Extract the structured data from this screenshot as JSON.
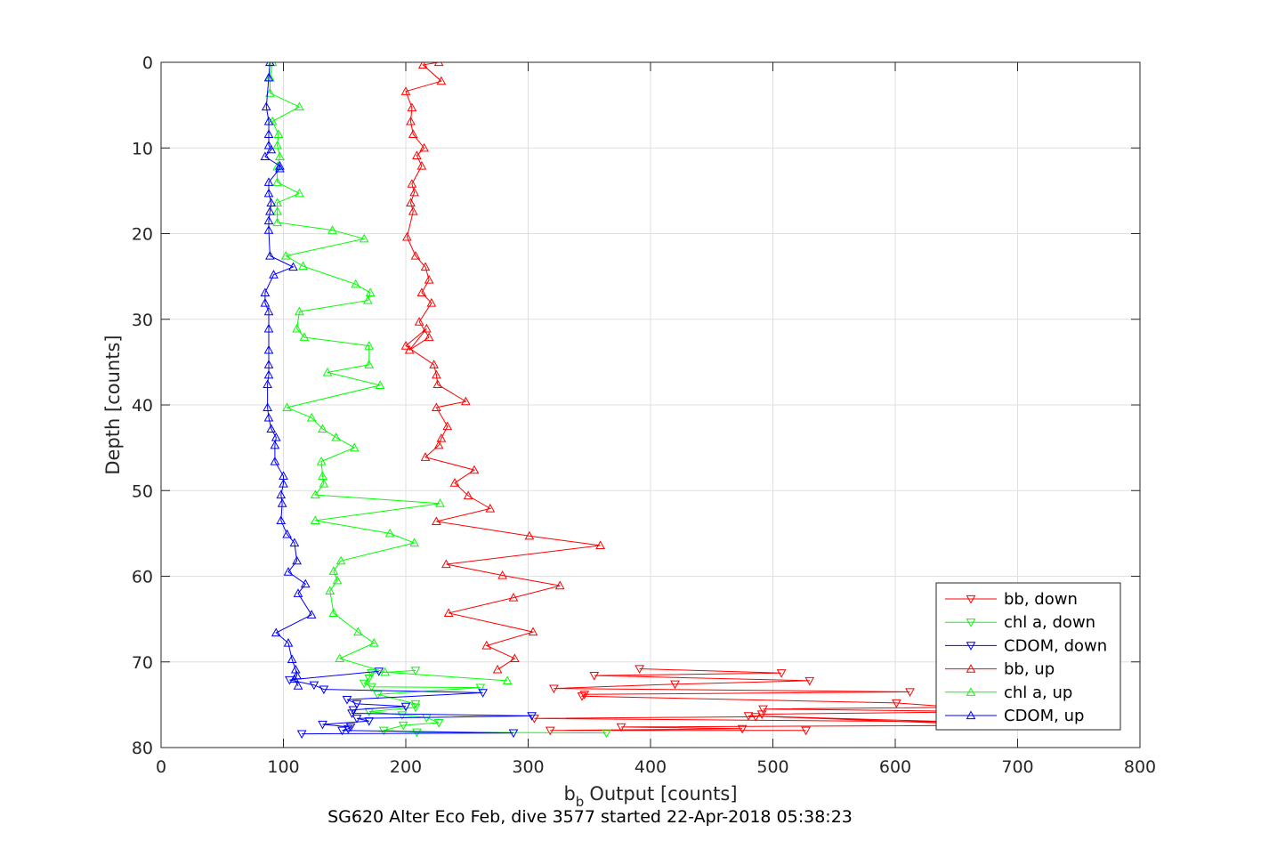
{
  "chart_data": {
    "type": "line",
    "title": "SG620 Alter Eco Feb, dive 3577 started 22-Apr-2018 05:38:23",
    "xlabel": "Output [counts]",
    "xlabel_symbol": "b",
    "xlabel_subscript": "b",
    "ylabel": "Depth [counts]",
    "xlim": [
      0,
      800
    ],
    "ylim": [
      0,
      80
    ],
    "y_reversed": true,
    "xticks": [
      "0",
      "100",
      "200",
      "300",
      "400",
      "500",
      "600",
      "700",
      "800"
    ],
    "yticks": [
      "0",
      "10",
      "20",
      "30",
      "40",
      "50",
      "60",
      "70",
      "80"
    ],
    "grid": true,
    "legend_position": "bottom-right",
    "series": [
      {
        "name": "bb, down",
        "color": "#ff0000",
        "marker": "triangle-down",
        "x": [
          391,
          507,
          354,
          530,
          420,
          321,
          612,
          346,
          344,
          601,
          650,
          492,
          680,
          491,
          486,
          305,
          650,
          480,
          690,
          376,
          475,
          318,
          527
        ],
        "y": [
          70.8,
          71.3,
          71.6,
          72.2,
          72.6,
          73.1,
          73.5,
          73.8,
          74.0,
          74.8,
          75.3,
          75.5,
          75.8,
          76.1,
          76.4,
          76.6,
          77.0,
          76.3,
          77.4,
          77.6,
          77.8,
          78.0,
          78.0
        ]
      },
      {
        "name": "chl a, down",
        "color": "#00ff00",
        "marker": "triangle-down",
        "x": [
          208,
          172,
          170,
          166,
          172,
          261,
          177,
          208,
          208,
          170,
          197,
          217,
          227,
          198,
          182,
          209,
          364
        ],
        "y": [
          71.0,
          71.3,
          71.9,
          72.5,
          72.9,
          73.0,
          73.8,
          74.9,
          75.3,
          75.8,
          76.2,
          76.5,
          77.1,
          77.4,
          78.0,
          78.2,
          78.3
        ]
      },
      {
        "name": "CDOM, down",
        "color": "#0000ff",
        "marker": "triangle-down",
        "x": [
          178,
          105,
          125,
          133,
          263,
          152,
          160,
          200,
          157,
          156,
          303,
          160,
          170,
          132,
          155,
          153,
          148,
          288,
          115
        ],
        "y": [
          71.1,
          72.1,
          72.7,
          73.2,
          73.6,
          74.4,
          74.9,
          75.2,
          75.6,
          76.0,
          76.3,
          76.6,
          76.9,
          77.3,
          77.6,
          77.8,
          78.0,
          78.3,
          78.4
        ]
      },
      {
        "name": "bb, up",
        "color": "#ff0000",
        "marker": "triangle-up",
        "x": [
          227,
          214,
          229,
          200,
          205,
          204,
          206,
          215,
          209,
          213,
          205,
          207,
          204,
          206,
          201,
          208,
          216,
          219,
          213,
          221,
          211,
          219,
          203,
          217,
          200,
          223,
          225,
          226,
          249,
          225,
          234,
          229,
          227,
          216,
          256,
          240,
          251,
          269,
          225,
          301,
          359,
          233,
          279,
          326,
          288,
          235,
          304,
          266,
          289,
          275
        ],
        "y": [
          0,
          0.3,
          2.2,
          3.4,
          5.3,
          6.9,
          8.4,
          10.0,
          10.9,
          12.1,
          14.2,
          15.2,
          16.4,
          17.4,
          20.4,
          22.6,
          23.9,
          25.4,
          26.9,
          28.1,
          30.3,
          32.1,
          33.6,
          31.1,
          33.1,
          35.3,
          36.5,
          37.6,
          39.6,
          40.3,
          42.5,
          43.9,
          44.7,
          46.1,
          47.6,
          49.1,
          50.6,
          52.1,
          53.6,
          55.3,
          56.4,
          58.6,
          59.9,
          61.1,
          62.5,
          64.3,
          66.5,
          68.1,
          69.6,
          70.9
        ]
      },
      {
        "name": "chl a, up",
        "color": "#00ff00",
        "marker": "triangle-up",
        "x": [
          91,
          89,
          89,
          113,
          91,
          96,
          95,
          97,
          95,
          95,
          113,
          95,
          95,
          95,
          140,
          166,
          102,
          116,
          159,
          171,
          169,
          113,
          111,
          117,
          170,
          170,
          136,
          179,
          103,
          123,
          132,
          143,
          158,
          131,
          132,
          133,
          126,
          228,
          126,
          187,
          207,
          147,
          141,
          144,
          138,
          141,
          161,
          174,
          146,
          183,
          283
        ],
        "y": [
          0,
          1.8,
          3.6,
          5.2,
          6.9,
          8.4,
          9.7,
          11.0,
          12.2,
          14.0,
          15.3,
          16.4,
          17.4,
          18.7,
          19.6,
          20.6,
          22.6,
          23.8,
          25.9,
          26.9,
          27.8,
          29.1,
          31.1,
          32.1,
          33.1,
          35.3,
          36.2,
          37.7,
          40.3,
          41.5,
          42.8,
          43.8,
          45.0,
          46.6,
          48.3,
          49.2,
          50.5,
          51.5,
          53.5,
          55.0,
          56.1,
          58.2,
          59.4,
          60.5,
          61.7,
          64.3,
          66.5,
          67.8,
          69.6,
          71.2,
          72.2
        ]
      },
      {
        "name": "CDOM, up",
        "color": "#0000ff",
        "marker": "triangle-up",
        "x": [
          89,
          88,
          86,
          88,
          88,
          88,
          90,
          85,
          97,
          97,
          88,
          88,
          90,
          89,
          88,
          88,
          89,
          108,
          92,
          85,
          85,
          88,
          88,
          88,
          88,
          88,
          87,
          87,
          88,
          90,
          94,
          93,
          93,
          100,
          100,
          98,
          99,
          98,
          103,
          109,
          111,
          104,
          118,
          112,
          123,
          94,
          104,
          107,
          110,
          111,
          109,
          112
        ],
        "y": [
          0,
          1.8,
          5.2,
          6.9,
          8.4,
          9.7,
          10.2,
          11.0,
          12.1,
          12.4,
          14.0,
          15.3,
          16.4,
          17.4,
          18.5,
          19.6,
          22.6,
          23.9,
          24.8,
          26.9,
          28.1,
          29.1,
          31.1,
          33.6,
          35.3,
          36.5,
          37.6,
          40.3,
          41.5,
          42.8,
          43.8,
          44.7,
          46.6,
          48.3,
          49.2,
          50.5,
          51.5,
          53.5,
          55.1,
          56.1,
          58.2,
          59.5,
          60.9,
          62.0,
          64.5,
          66.6,
          67.8,
          69.7,
          70.9,
          71.6,
          72.0,
          72.8
        ]
      }
    ]
  }
}
